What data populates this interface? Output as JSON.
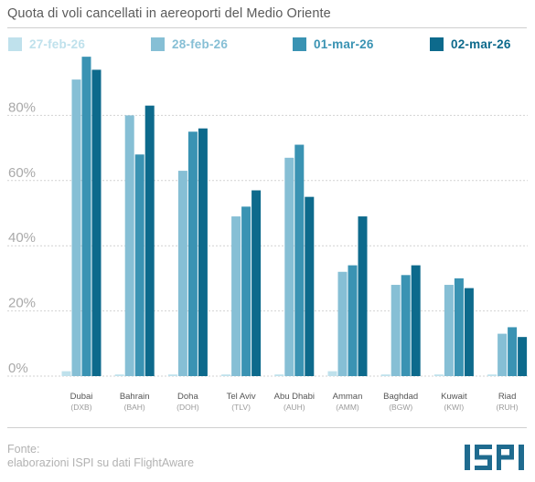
{
  "title": "Quota di voli cancellati in aereoporti del Medio Oriente",
  "source": {
    "line1": "Fonte:",
    "line2": "elaborazioni ISPI su dati FlightAware"
  },
  "logo_text": "ISPI",
  "colors": {
    "series": [
      "#bfe1ec",
      "#86bfd5",
      "#3a93b3",
      "#0d6a8c"
    ],
    "gridline": "#d2d2d2",
    "tick_text": "#a9a9a9",
    "category_text": "#555555",
    "code_text": "#9a9a9a",
    "logo": "#1f6b8f"
  },
  "chart_data": {
    "type": "bar",
    "title": "Quota di voli cancellati in aereoporti del Medio Oriente",
    "categories": [
      "Dubai",
      "Bahrain",
      "Doha",
      "Tel Aviv",
      "Abu Dhabi",
      "Amman",
      "Baghdad",
      "Kuwait",
      "Riad"
    ],
    "category_codes": [
      "(DXB)",
      "(BAH)",
      "(DOH)",
      "(TLV)",
      "(AUH)",
      "(AMM)",
      "(BGW)",
      "(KWI)",
      "(RUH)"
    ],
    "series": [
      {
        "name": "27-feb-26",
        "values": [
          1.5,
          0.5,
          0.5,
          0.5,
          0.5,
          1.5,
          0.5,
          0.5,
          0.5
        ]
      },
      {
        "name": "28-feb-26",
        "values": [
          91,
          80,
          63,
          49,
          67,
          32,
          28,
          28,
          13
        ]
      },
      {
        "name": "01-mar-26",
        "values": [
          98,
          68,
          75,
          52,
          71,
          34,
          31,
          30,
          15
        ]
      },
      {
        "name": "02-mar-26",
        "values": [
          94,
          83,
          76,
          57,
          55,
          49,
          34,
          27,
          12
        ]
      }
    ],
    "y_ticks": [
      "0%",
      "20%",
      "40%",
      "60%",
      "80%"
    ],
    "ylim": [
      0,
      100
    ],
    "grid": true,
    "legend_position": "top"
  }
}
